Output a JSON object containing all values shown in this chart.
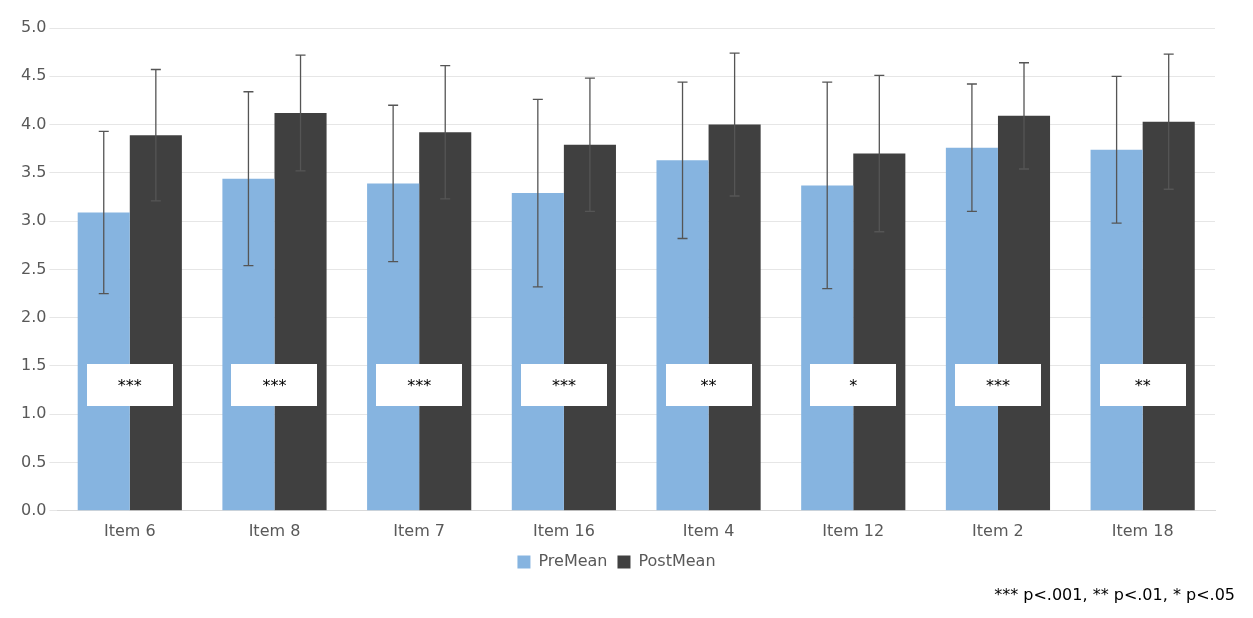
{
  "chart_data": {
    "type": "bar",
    "categories": [
      "Item 6",
      "Item 8",
      "Item 7",
      "Item 16",
      "Item 4",
      "Item 12",
      "Item 2",
      "Item 18"
    ],
    "series": [
      {
        "name": "PreMean",
        "color": "#86b4e0",
        "values": [
          3.09,
          3.44,
          3.39,
          3.29,
          3.63,
          3.37,
          3.76,
          3.74
        ],
        "errors": [
          0.84,
          0.9,
          0.81,
          0.97,
          0.81,
          1.07,
          0.66,
          0.76
        ]
      },
      {
        "name": "PostMean",
        "color": "#404040",
        "values": [
          3.89,
          4.12,
          3.92,
          3.79,
          4.0,
          3.7,
          4.09,
          4.03
        ],
        "errors": [
          0.68,
          0.6,
          0.69,
          0.69,
          0.74,
          0.81,
          0.55,
          0.7
        ]
      }
    ],
    "ylim": [
      0,
      5
    ],
    "yticks": [
      {
        "value": 0,
        "label": "0.0"
      },
      0.5,
      {
        "value": 1,
        "label": "1.0"
      },
      1.5,
      {
        "value": 2,
        "label": "2.0"
      },
      2.5,
      {
        "value": 3,
        "label": "3.0"
      },
      3.5,
      {
        "value": 4,
        "label": "4.0"
      },
      4.5,
      {
        "value": 5,
        "label": "5.0"
      }
    ],
    "grid": "y",
    "legend": "bottom",
    "annotations": [
      {
        "text": "***",
        "x": "Item 6",
        "y": 1.3
      },
      {
        "text": "***",
        "x": "Item 8",
        "y": 1.3
      },
      {
        "text": "***",
        "x": "Item 7",
        "y": 1.3
      },
      {
        "text": "***",
        "x": "Item 16",
        "y": 1.3
      },
      {
        "text": "**",
        "x": "Item 4",
        "y": 1.3
      },
      {
        "text": "*",
        "x": "Item 12",
        "y": 1.3
      },
      {
        "text": "***",
        "x": "Item 2",
        "y": 1.3
      },
      {
        "text": "**",
        "x": "Item 18",
        "y": 1.3
      },
      "*** p<.001, ** p<.01, * p<.05"
    ]
  }
}
